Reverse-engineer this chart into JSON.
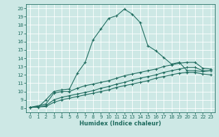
{
  "xlabel": "Humidex (Indice chaleur)",
  "bg_color": "#cde8e5",
  "line_color": "#1e6b5e",
  "grid_color": "#b8d8d4",
  "xlim": [
    -0.5,
    23.5
  ],
  "ylim": [
    7.5,
    20.5
  ],
  "xticks": [
    0,
    1,
    2,
    3,
    4,
    5,
    6,
    7,
    8,
    9,
    10,
    11,
    12,
    13,
    14,
    15,
    16,
    17,
    18,
    19,
    20,
    21,
    22,
    23
  ],
  "yticks": [
    8,
    9,
    10,
    11,
    12,
    13,
    14,
    15,
    16,
    17,
    18,
    19,
    20
  ],
  "line1_x": [
    0,
    1,
    2,
    3,
    4,
    5,
    6,
    7,
    8,
    9,
    10,
    11,
    12,
    13,
    14,
    15,
    16,
    17,
    18,
    19,
    20,
    21,
    22,
    23
  ],
  "line1_y": [
    8.1,
    8.1,
    9.0,
    10.0,
    10.2,
    10.3,
    12.2,
    13.5,
    16.2,
    17.5,
    18.8,
    19.1,
    19.9,
    19.3,
    18.3,
    15.5,
    14.9,
    14.1,
    13.3,
    13.5,
    12.5,
    12.5,
    12.4,
    12.5
  ],
  "line2_x": [
    0,
    2,
    3,
    4,
    5,
    6,
    7,
    8,
    9,
    10,
    11,
    12,
    13,
    14,
    15,
    16,
    17,
    18,
    19,
    20,
    21,
    22,
    23
  ],
  "line2_y": [
    8.1,
    8.5,
    9.8,
    10.0,
    10.0,
    10.4,
    10.7,
    10.9,
    11.1,
    11.3,
    11.6,
    11.9,
    12.1,
    12.3,
    12.5,
    12.7,
    13.0,
    13.2,
    13.4,
    13.5,
    13.5,
    12.8,
    12.7
  ],
  "line3_x": [
    0,
    2,
    3,
    4,
    5,
    6,
    7,
    8,
    9,
    10,
    11,
    12,
    13,
    14,
    15,
    16,
    17,
    18,
    19,
    20,
    21,
    22,
    23
  ],
  "line3_y": [
    8.1,
    8.3,
    9.0,
    9.3,
    9.5,
    9.7,
    9.9,
    10.1,
    10.4,
    10.6,
    10.9,
    11.1,
    11.4,
    11.6,
    11.8,
    12.0,
    12.3,
    12.5,
    12.7,
    12.9,
    12.9,
    12.5,
    12.5
  ],
  "line4_x": [
    0,
    2,
    3,
    4,
    5,
    6,
    7,
    8,
    9,
    10,
    11,
    12,
    13,
    14,
    15,
    16,
    17,
    18,
    19,
    20,
    21,
    22,
    23
  ],
  "line4_y": [
    8.1,
    8.2,
    8.7,
    9.0,
    9.2,
    9.4,
    9.6,
    9.8,
    10.0,
    10.2,
    10.5,
    10.7,
    10.9,
    11.1,
    11.3,
    11.6,
    11.8,
    12.0,
    12.2,
    12.3,
    12.3,
    12.1,
    12.0
  ]
}
